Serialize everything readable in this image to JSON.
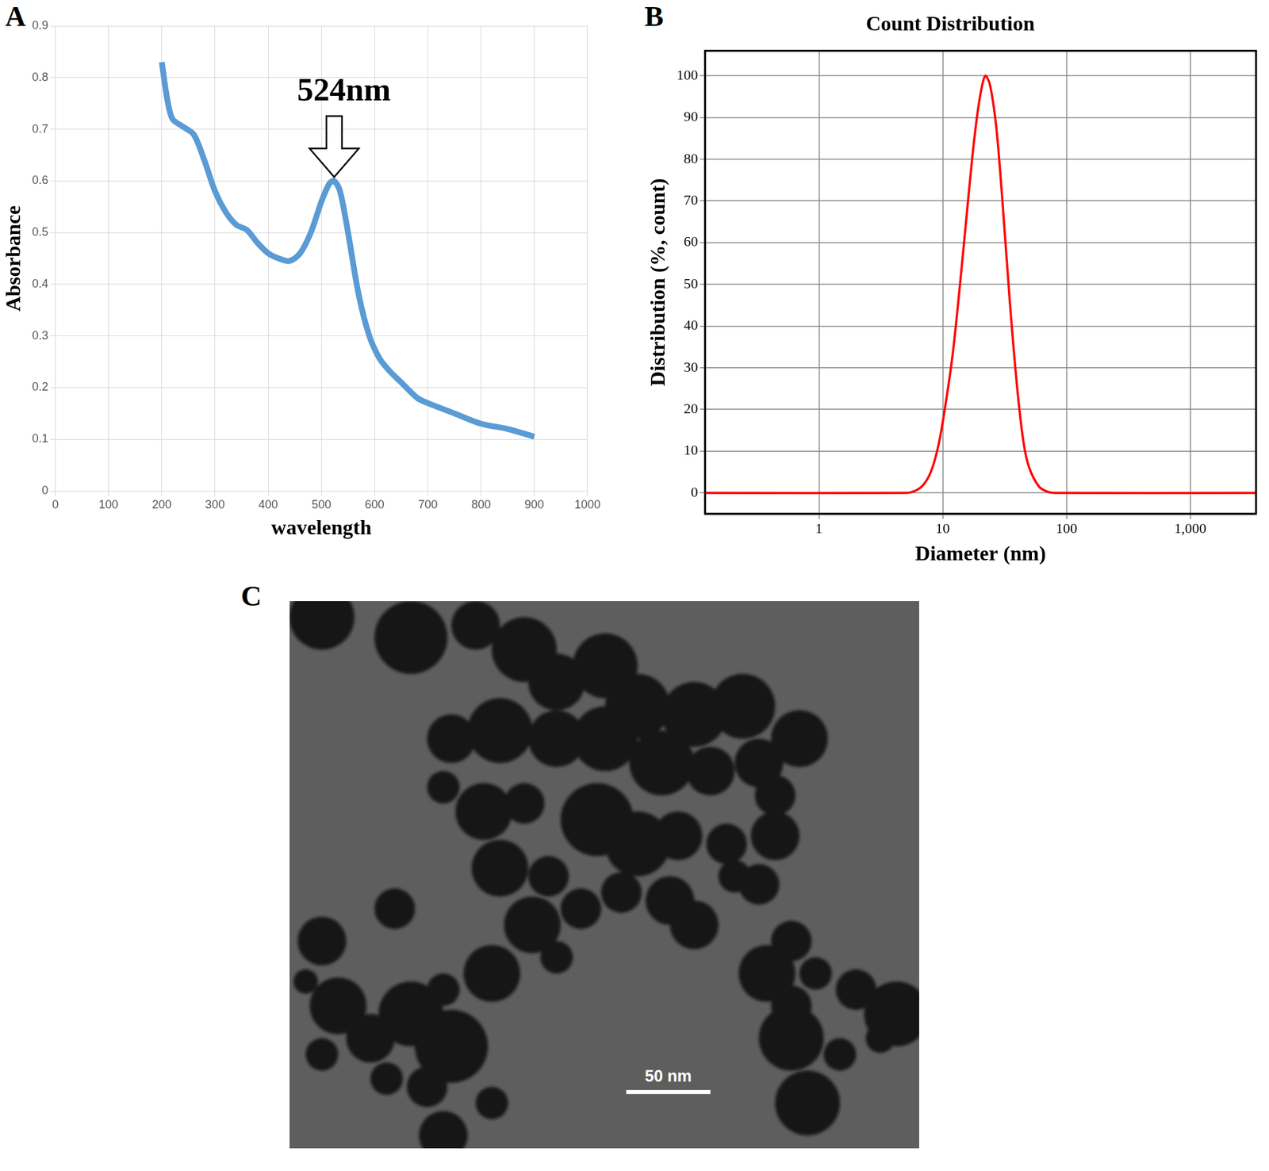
{
  "chart_data": [
    {
      "panel": "A",
      "type": "line",
      "x_label": "wavelength",
      "y_label": "Absorbance",
      "x": [
        200,
        210,
        220,
        240,
        260,
        280,
        300,
        320,
        340,
        360,
        380,
        400,
        420,
        440,
        460,
        480,
        500,
        515,
        524,
        535,
        550,
        570,
        590,
        610,
        630,
        650,
        680,
        700,
        750,
        800,
        850,
        900
      ],
      "values": [
        0.83,
        0.76,
        0.72,
        0.705,
        0.69,
        0.64,
        0.58,
        0.54,
        0.515,
        0.505,
        0.48,
        0.46,
        0.45,
        0.445,
        0.46,
        0.5,
        0.56,
        0.595,
        0.6,
        0.58,
        0.5,
        0.38,
        0.3,
        0.255,
        0.23,
        0.21,
        0.18,
        0.17,
        0.15,
        0.13,
        0.12,
        0.105
      ],
      "color": "#5b9bd5",
      "marker": "none",
      "line_style": "solid",
      "xlim": [
        0,
        1000
      ],
      "xticks": [
        0,
        100,
        200,
        300,
        400,
        500,
        600,
        700,
        800,
        900,
        1000
      ],
      "ylim": [
        0,
        0.9
      ],
      "yticks": [
        0,
        0.1,
        0.2,
        0.3,
        0.4,
        0.5,
        0.6,
        0.7,
        0.8,
        0.9
      ],
      "grid": true,
      "annotations": [
        {
          "text": "524nm",
          "x": 524,
          "y": 0.6
        }
      ]
    },
    {
      "panel": "B",
      "type": "line",
      "title": "Count Distribution",
      "x_label": "Diameter (nm)",
      "y_label": "Distribution (%, count)",
      "x": [
        0.12,
        5,
        6,
        7,
        8,
        9,
        10,
        12,
        14,
        16,
        18,
        20,
        22,
        24,
        27,
        30,
        35,
        40,
        45,
        50,
        60,
        70,
        80,
        3400
      ],
      "values": [
        0,
        0,
        0.5,
        2,
        5,
        10,
        17,
        33,
        52,
        70,
        85,
        95,
        100,
        98,
        88,
        72,
        45,
        25,
        12,
        6,
        1.5,
        0.3,
        0,
        0
      ],
      "color": "#ff0000",
      "marker": "none",
      "line_style": "solid",
      "log": "x",
      "xlim": [
        0.12,
        3400
      ],
      "xticks": [
        1,
        10,
        100,
        {
          "value": 1000,
          "label": "1,000"
        }
      ],
      "ylim": [
        -5,
        106
      ],
      "yticks": [
        0,
        10,
        20,
        30,
        40,
        50,
        60,
        70,
        80,
        90,
        100
      ],
      "grid": true
    }
  ],
  "image": {
    "panel": "C",
    "scale_bar": "50 nm"
  }
}
